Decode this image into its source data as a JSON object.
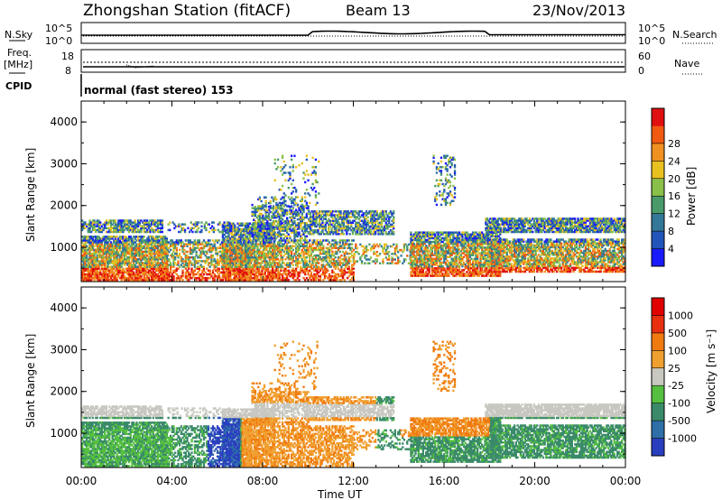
{
  "header": {
    "title": "Zhongshan Station (fitACF)",
    "beam": "Beam 13",
    "date": "23/Nov/2013"
  },
  "panels": {
    "nsky": {
      "left_label": "N.Sky",
      "right_label": "N.Search",
      "top_tick": "10^5",
      "bottom_tick": "10^0",
      "right_top_tick": "10^5",
      "right_bottom_tick": "10^0"
    },
    "freq": {
      "left_label": "Freq.",
      "unit": "[MHz]",
      "top_tick": "18",
      "bottom_tick": "8",
      "right_label": "Nave",
      "right_top_tick": "60",
      "right_bottom_tick": "0"
    },
    "cpid": {
      "label": "CPID",
      "text": "normal (fast stereo) 153"
    }
  },
  "chart_data": [
    {
      "type": "heatmap",
      "title": "",
      "xlabel": "Time UT",
      "ylabel": "Slant Range [km]",
      "x_ticks": [
        "00:00",
        "04:00",
        "08:00",
        "12:00",
        "16:00",
        "20:00",
        "00:00"
      ],
      "y_ticks": [
        "1000",
        "2000",
        "3000",
        "4000"
      ],
      "ylim": [
        180,
        4500
      ],
      "xlim_hours": [
        0,
        24
      ],
      "colorbar": {
        "label": "Power [dB]",
        "ticks": [
          "4",
          "8",
          "12",
          "16",
          "20",
          "24",
          "28"
        ],
        "colors": [
          "#1a1aff",
          "#2255bb",
          "#337799",
          "#4a9a6a",
          "#8ac04a",
          "#e8c020",
          "#f09020",
          "#f05a10",
          "#e01010"
        ]
      }
    },
    {
      "type": "heatmap",
      "title": "",
      "xlabel": "Time UT",
      "ylabel": "Slant Range [km]",
      "x_ticks": [
        "00:00",
        "04:00",
        "08:00",
        "12:00",
        "16:00",
        "20:00",
        "00:00"
      ],
      "y_ticks": [
        "1000",
        "2000",
        "3000",
        "4000"
      ],
      "ylim": [
        180,
        4500
      ],
      "xlim_hours": [
        0,
        24
      ],
      "colorbar": {
        "label": "Velocity [m s⁻¹]",
        "ticks": [
          "1000",
          "500",
          "100",
          "25",
          "-25",
          "-100",
          "-500",
          "-1000"
        ],
        "colors": [
          "#2a3fbf",
          "#2e6fa8",
          "#3a8a6a",
          "#55c040",
          "#c8c8c0",
          "#f0a030",
          "#f07a10",
          "#e83010",
          "#e00000"
        ]
      }
    }
  ]
}
